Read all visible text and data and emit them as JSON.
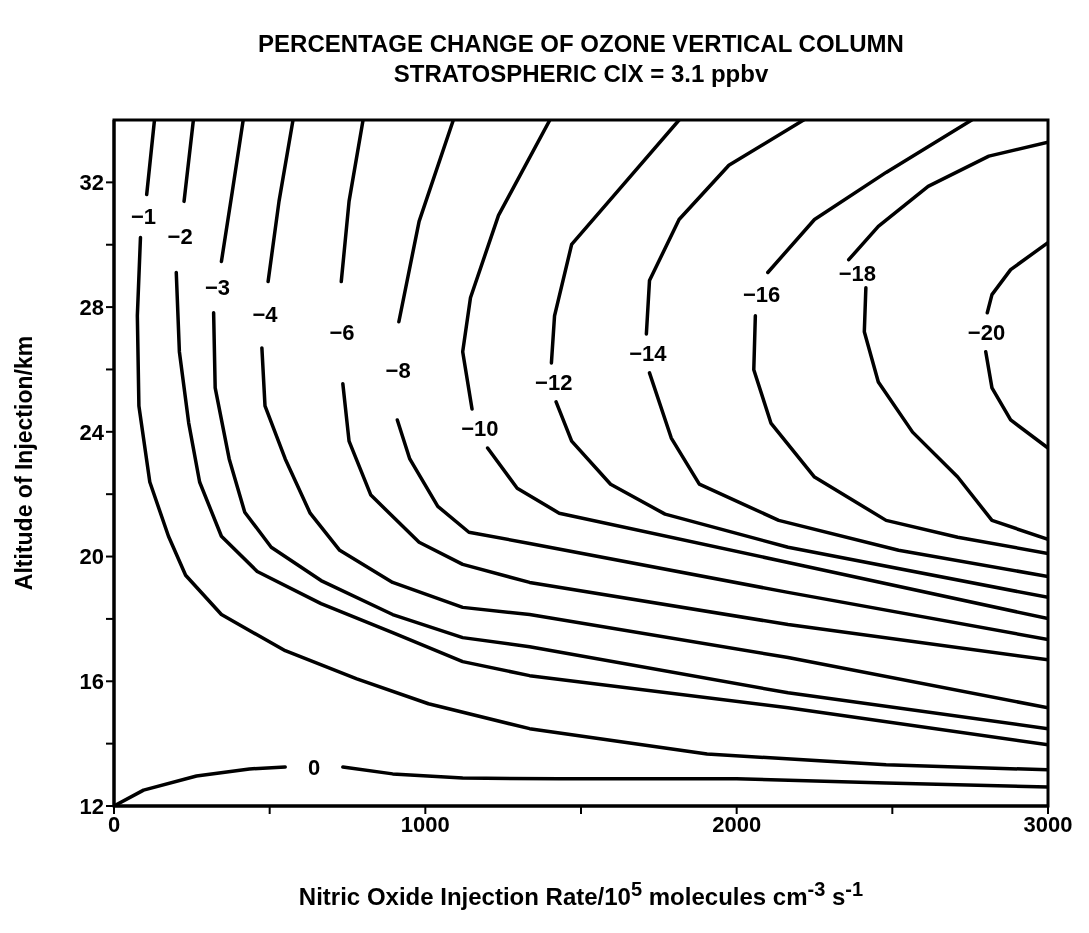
{
  "chart_data": {
    "type": "line",
    "title": "PERCENTAGE CHANGE OF OZONE VERTICAL COLUMN",
    "subtitle": "STRATOSPHERIC ClX = 3.1 ppbv",
    "xlabel": "Nitric Oxide Injection Rate/10$^{5}$ molecules cm$^{-3}$  s$^{-1}$",
    "ylabel": "Altitude of Injection/km",
    "xlim": [
      0,
      3000
    ],
    "xticks": [
      0,
      {
        "value": 500,
        "label": null
      },
      1000,
      {
        "value": 1500,
        "label": null
      },
      2000,
      {
        "value": 2500,
        "label": null
      },
      3000
    ],
    "ylim": [
      12,
      34
    ],
    "yticks": [
      12,
      {
        "value": 14,
        "label": null
      },
      16,
      {
        "value": 18,
        "label": null
      },
      20,
      {
        "value": 22,
        "label": null
      },
      24,
      {
        "value": 26,
        "label": null
      },
      28,
      {
        "value": 30,
        "label": null
      },
      32
    ],
    "series": [
      {
        "name": "0",
        "color": "#000000",
        "x": [
          0,
          95,
          265,
          435,
          550
        ],
        "values": [
          12,
          12.51,
          12.96,
          13.19,
          13.25
        ]
      },
      {
        "color": "#000000",
        "x": [
          735,
          895,
          1120,
          1430,
          2000,
          2480,
          3000
        ],
        "values": [
          13.25,
          13.03,
          12.9,
          12.87,
          12.87,
          12.74,
          12.61
        ]
      },
      {
        "name": "−1",
        "color": "#000000",
        "x": [
          130,
          105
        ],
        "values": [
          34,
          31.61
        ]
      },
      {
        "color": "#000000",
        "x": [
          85,
          75,
          80,
          115,
          175,
          230,
          345,
          550,
          780,
          1010,
          1335,
          1905,
          2480,
          3000
        ],
        "values": [
          30.23,
          27.72,
          24.83,
          22.39,
          20.65,
          19.4,
          18.14,
          16.98,
          16.08,
          15.28,
          14.48,
          13.67,
          13.32,
          13.16
        ]
      },
      {
        "name": "−2",
        "color": "#000000",
        "x": [
          255,
          225
        ],
        "values": [
          34,
          31.39
        ]
      },
      {
        "color": "#000000",
        "x": [
          200,
          210,
          240,
          275,
          345,
          460,
          665,
          895,
          1120,
          1335,
          2165,
          3000
        ],
        "values": [
          29.11,
          26.57,
          24.28,
          22.39,
          20.65,
          19.52,
          18.49,
          17.56,
          16.63,
          16.18,
          15.15,
          13.96
        ]
      },
      {
        "name": "−3",
        "color": "#000000",
        "x": [
          415,
          380,
          345
        ],
        "values": [
          34,
          31.71,
          29.46
        ]
      },
      {
        "color": "#000000",
        "x": [
          320,
          325,
          370,
          420,
          505,
          665,
          895,
          1120,
          1335,
          2165,
          3000
        ],
        "values": [
          27.82,
          25.41,
          23.13,
          21.42,
          20.3,
          19.23,
          18.14,
          17.4,
          17.11,
          15.63,
          14.48
        ]
      },
      {
        "name": "−4",
        "color": "#000000",
        "x": [
          575,
          530,
          495
        ],
        "values": [
          34,
          31.39,
          28.82
        ]
      },
      {
        "color": "#000000",
        "x": [
          475,
          485,
          550,
          630,
          725,
          895,
          1120,
          1335,
          2165,
          3000
        ],
        "values": [
          26.69,
          24.83,
          23.13,
          21.39,
          20.2,
          19.17,
          18.37,
          18.14,
          16.76,
          15.15
        ]
      },
      {
        "name": "−6",
        "color": "#000000",
        "x": [
          800,
          755,
          730
        ],
        "values": [
          34,
          31.39,
          28.82
        ]
      },
      {
        "color": "#000000",
        "x": [
          735,
          755,
          825,
          980,
          1120,
          1335,
          2165,
          3000
        ],
        "values": [
          25.54,
          23.7,
          21.97,
          20.46,
          19.75,
          19.17,
          17.82,
          16.69
        ]
      },
      {
        "name": "−8",
        "color": "#000000",
        "x": [
          1090,
          980,
          915
        ],
        "values": [
          34,
          30.75,
          27.53
        ]
      },
      {
        "color": "#000000",
        "x": [
          910,
          950,
          1040,
          1140,
          1335,
          2165,
          3000
        ],
        "values": [
          24.38,
          23.13,
          21.61,
          20.78,
          20.42,
          18.85,
          17.34
        ]
      },
      {
        "name": "−10",
        "color": "#000000",
        "x": [
          1400,
          1235,
          1145,
          1120,
          1150
        ],
        "values": [
          34,
          30.94,
          28.3,
          26.57,
          24.73
        ]
      },
      {
        "color": "#000000",
        "x": [
          1200,
          1295,
          1430,
          2165,
          3000
        ],
        "values": [
          23.48,
          22.19,
          21.39,
          19.81,
          18.01
        ]
      },
      {
        "name": "−12",
        "color": "#000000",
        "x": [
          1815,
          1620,
          1470,
          1415,
          1405
        ],
        "values": [
          34,
          31.74,
          30.01,
          27.72,
          26.21
        ]
      },
      {
        "color": "#000000",
        "x": [
          1420,
          1470,
          1595,
          1770,
          2165,
          3000
        ],
        "values": [
          24.96,
          23.7,
          22.32,
          21.36,
          20.3,
          18.69
        ]
      },
      {
        "name": "−14",
        "color": "#000000",
        "x": [
          2215,
          1975,
          1815,
          1720,
          1710
        ],
        "values": [
          34,
          32.55,
          30.81,
          28.85,
          27.14
        ]
      },
      {
        "color": "#000000",
        "x": [
          1720,
          1790,
          1880,
          2135,
          2520,
          3000
        ],
        "values": [
          25.89,
          23.8,
          22.32,
          21.16,
          20.2,
          19.36
        ]
      },
      {
        "name": "−16",
        "color": "#000000",
        "x": [
          2755,
          2480,
          2250,
          2100
        ],
        "values": [
          34,
          32.32,
          30.81,
          29.11
        ]
      },
      {
        "color": "#000000",
        "x": [
          2060,
          2055,
          2110,
          2250,
          2480,
          2710,
          3000
        ],
        "values": [
          27.72,
          25.99,
          24.28,
          22.55,
          21.16,
          20.62,
          20.1
        ]
      },
      {
        "name": "−18",
        "color": "#000000",
        "x": [
          3000,
          2810,
          2615,
          2455,
          2360
        ],
        "values": [
          33.29,
          32.84,
          31.87,
          30.59,
          29.52
        ]
      },
      {
        "color": "#000000",
        "x": [
          2415,
          2410,
          2455,
          2565,
          2710,
          2820,
          3000
        ],
        "values": [
          28.62,
          27.21,
          25.6,
          23.99,
          22.55,
          21.16,
          20.55
        ]
      },
      {
        "name": "−20",
        "color": "#000000",
        "x": [
          3000,
          2880,
          2820,
          2805
        ],
        "values": [
          30.07,
          29.2,
          28.4,
          27.82
        ]
      },
      {
        "color": "#000000",
        "x": [
          2800,
          2820,
          2880,
          3000
        ],
        "values": [
          26.57,
          25.41,
          24.38,
          23.48
        ]
      }
    ]
  }
}
